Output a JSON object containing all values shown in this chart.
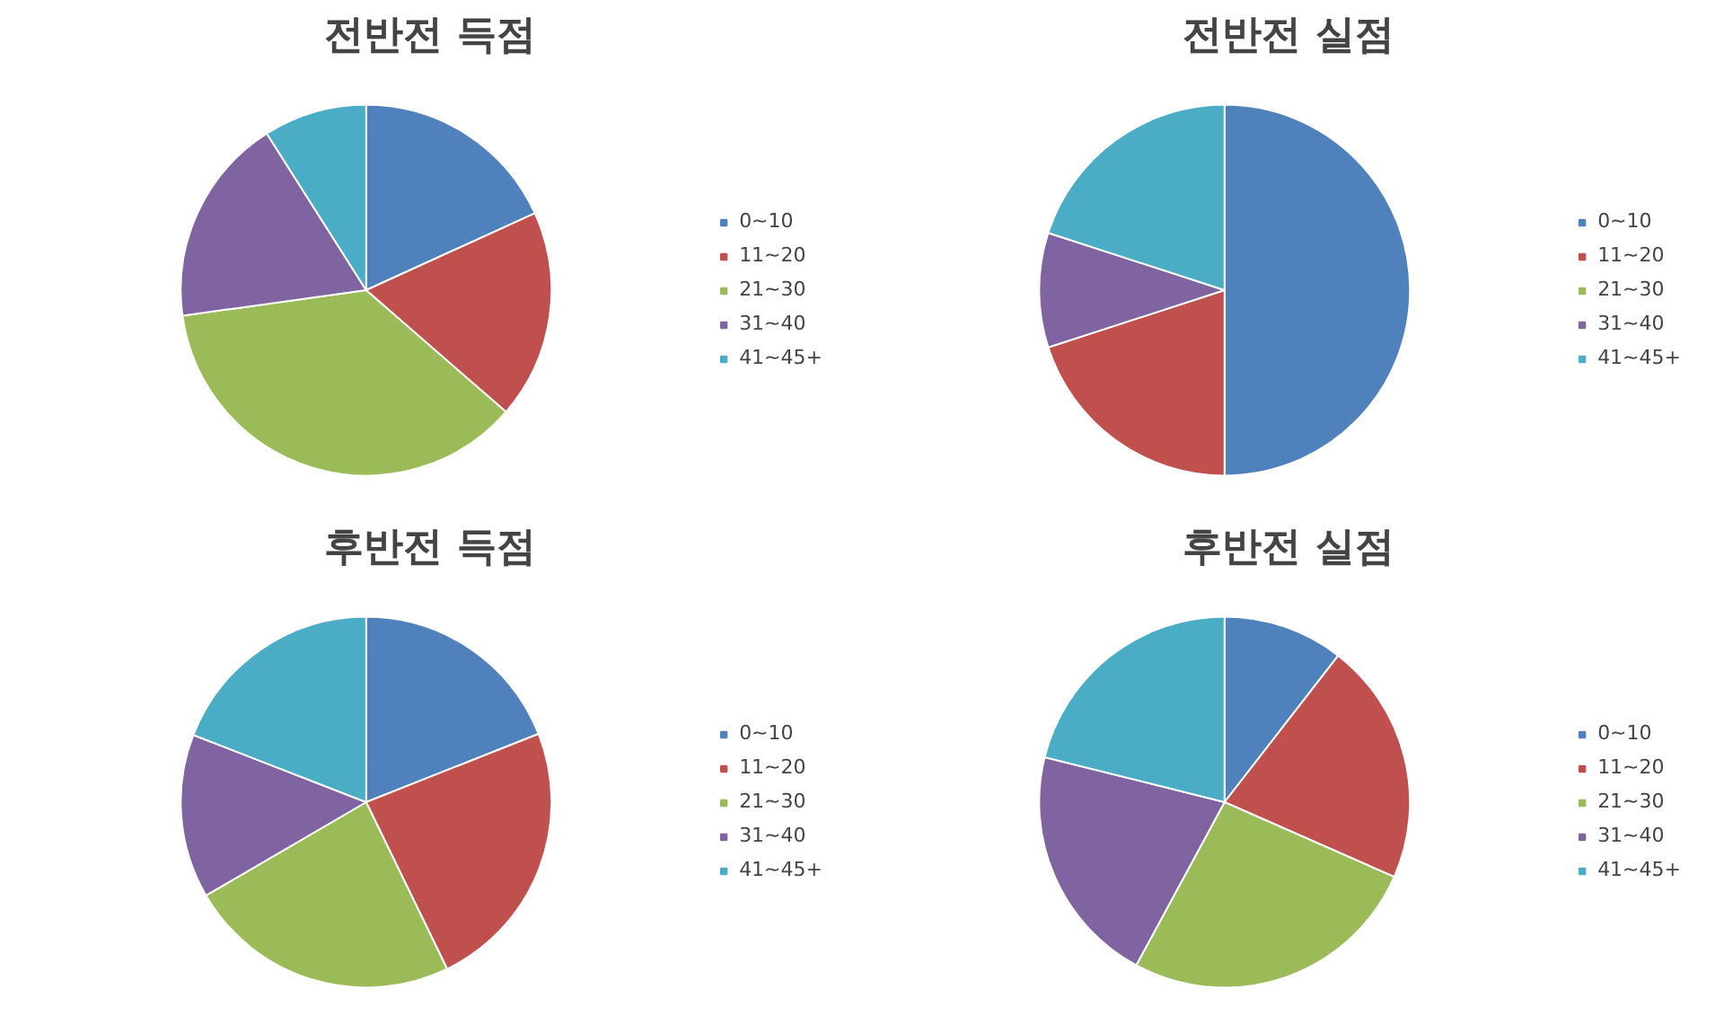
{
  "chart_data": [
    {
      "type": "pie",
      "title": "전반전 득점",
      "categories": [
        "0~10",
        "11~20",
        "21~30",
        "31~40",
        "41~45+"
      ],
      "values": [
        18.2,
        18.2,
        36.4,
        18.2,
        9.0
      ],
      "colors": [
        "#4f81bd",
        "#c0504d",
        "#9bbb59",
        "#8064a2",
        "#4bacc6"
      ],
      "legend": "right"
    },
    {
      "type": "pie",
      "title": "전반전 실점",
      "categories": [
        "0~10",
        "11~20",
        "21~30",
        "31~40",
        "41~45+"
      ],
      "values": [
        50,
        20,
        0,
        10,
        20
      ],
      "colors": [
        "#4f81bd",
        "#c0504d",
        "#9bbb59",
        "#8064a2",
        "#4bacc6"
      ],
      "legend": "right"
    },
    {
      "type": "pie",
      "title": "후반전 득점",
      "categories": [
        "0~10",
        "11~20",
        "21~30",
        "31~40",
        "41~45+"
      ],
      "values": [
        19.0,
        23.8,
        23.8,
        14.3,
        19.1
      ],
      "colors": [
        "#4f81bd",
        "#c0504d",
        "#9bbb59",
        "#8064a2",
        "#4bacc6"
      ],
      "legend": "right"
    },
    {
      "type": "pie",
      "title": "후반전 실점",
      "categories": [
        "0~10",
        "11~20",
        "21~30",
        "31~40",
        "41~45+"
      ],
      "values": [
        10.5,
        21.1,
        26.3,
        21.0,
        21.1
      ],
      "colors": [
        "#4f81bd",
        "#c0504d",
        "#9bbb59",
        "#8064a2",
        "#4bacc6"
      ],
      "legend": "right"
    }
  ]
}
